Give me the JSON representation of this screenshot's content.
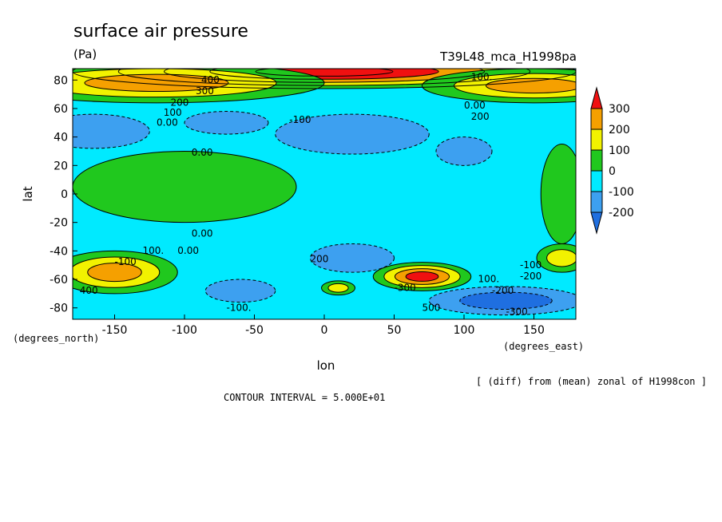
{
  "chart_data": {
    "type": "heatmap",
    "title": "surface air pressure",
    "units": "(Pa)",
    "run_label": "T39L48_mca_H1998pa",
    "xlabel": "lon",
    "ylabel": "lat",
    "x_units_label": "(degrees_east)",
    "y_units_label": "(degrees_north)",
    "xlim": [
      -180,
      180
    ],
    "ylim": [
      -88,
      88
    ],
    "x_ticks": [
      -150,
      -100,
      -50,
      0,
      50,
      100,
      150
    ],
    "y_ticks": [
      80,
      60,
      40,
      20,
      0,
      -20,
      -40,
      -60,
      -80
    ],
    "colorbar": {
      "levels": [
        -200,
        -100,
        0,
        100,
        200,
        300
      ],
      "colors": [
        "#1f6fe0",
        "#3da0f0",
        "#00eaff",
        "#20c81e",
        "#f2f200",
        "#f5a000",
        "#f01010"
      ],
      "labels": [
        "300",
        "200",
        "100",
        "0",
        "-100",
        "-200"
      ]
    },
    "contour_labels": [
      "400",
      "300",
      "200",
      "100",
      "0.00",
      "-100",
      "0.00",
      "0.00",
      "100.",
      "0.00",
      "-100",
      "200",
      "-300",
      "400",
      "500",
      "100.",
      "0.00",
      "200",
      "100.",
      "-100",
      "-300",
      "-200",
      "-200",
      "-100."
    ],
    "footnote": "[ (diff) from (mean) zonal of H1998con ]",
    "contour_interval": "CONTOUR INTERVAL = 5.000E+01",
    "anomalies": [
      {
        "lon": 0,
        "lat": 86,
        "rx": 180,
        "ry": 12,
        "value": 450
      },
      {
        "lon": -120,
        "lat": 78,
        "rx": 120,
        "ry": 14,
        "value": 220
      },
      {
        "lon": 150,
        "lat": 76,
        "rx": 80,
        "ry": 12,
        "value": 220
      },
      {
        "lon": 20,
        "lat": 42,
        "rx": 55,
        "ry": 14,
        "value": -160
      },
      {
        "lon": -165,
        "lat": 44,
        "rx": 40,
        "ry": 12,
        "value": -120
      },
      {
        "lon": -70,
        "lat": 50,
        "rx": 30,
        "ry": 8,
        "value": -100
      },
      {
        "lon": 100,
        "lat": 30,
        "rx": 20,
        "ry": 10,
        "value": -100
      },
      {
        "lon": -100,
        "lat": 5,
        "rx": 80,
        "ry": 25,
        "value": 40
      },
      {
        "lon": 170,
        "lat": 0,
        "rx": 15,
        "ry": 35,
        "value": 30
      },
      {
        "lon": -150,
        "lat": -55,
        "rx": 45,
        "ry": 15,
        "value": 210
      },
      {
        "lon": 70,
        "lat": -58,
        "rx": 35,
        "ry": 10,
        "value": 320
      },
      {
        "lon": 20,
        "lat": -45,
        "rx": 30,
        "ry": 10,
        "value": -170
      },
      {
        "lon": 130,
        "lat": -75,
        "rx": 55,
        "ry": 10,
        "value": -250
      },
      {
        "lon": -60,
        "lat": -68,
        "rx": 25,
        "ry": 8,
        "value": -120
      },
      {
        "lon": 10,
        "lat": -66,
        "rx": 12,
        "ry": 5,
        "value": 120
      },
      {
        "lon": 170,
        "lat": -45,
        "rx": 18,
        "ry": 10,
        "value": 150
      },
      {
        "lon": 5,
        "lat": 0,
        "rx": 8,
        "ry": 5,
        "value": -60
      }
    ]
  }
}
